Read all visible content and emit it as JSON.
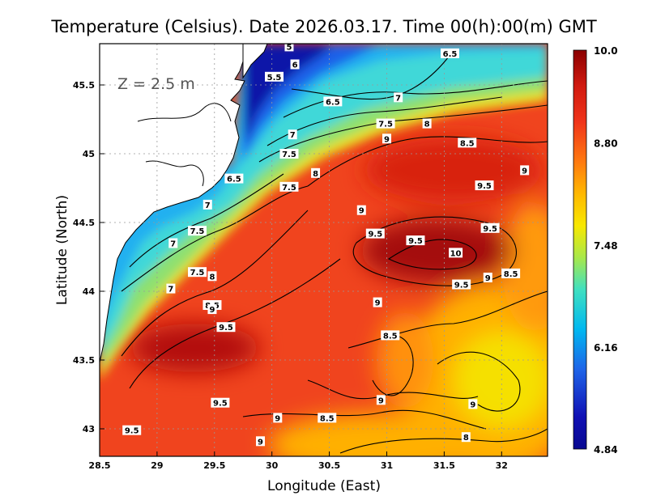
{
  "title": "Temperature (Celsius). Date 2026.03.17. Time 00(h):00(m) GMT",
  "depth_label": "Z = 2.5 m",
  "axes": {
    "xlabel": "Longitude (East)",
    "ylabel": "Latitude (North)",
    "xlim": [
      28.5,
      32.4
    ],
    "ylim": [
      42.8,
      45.8
    ],
    "xticks": [
      "28.5",
      "29",
      "29.5",
      "30",
      "30.5",
      "31",
      "31.5",
      "32"
    ],
    "yticks": [
      "43",
      "43.5",
      "44",
      "44.5",
      "45",
      "45.5"
    ],
    "grid": true
  },
  "colorbar": {
    "min": 4.84,
    "max": 10.0,
    "ticks": [
      "10.0",
      "8.80",
      "7.48",
      "6.16",
      "4.84"
    ],
    "colors": [
      "#8b0000",
      "#d11a10",
      "#f0341a",
      "#ff7a10",
      "#ffb800",
      "#f8e800",
      "#a8e84a",
      "#40e0c0",
      "#00b8f0",
      "#1e64e8",
      "#1010b4",
      "#080890"
    ]
  },
  "chart_data": {
    "type": "heatmap",
    "title": "Temperature (Celsius). Date 2026.03.17. Time 00(h):00(m) GMT",
    "xlabel": "Longitude (East)",
    "ylabel": "Latitude (North)",
    "variable_unit": "Celsius",
    "depth": "Z = 2.5 m",
    "x_range": [
      28.5,
      32.4
    ],
    "y_range": [
      42.8,
      45.8
    ],
    "value_range": [
      4.84,
      10.0
    ],
    "contour_labels": [
      {
        "value": "5",
        "lon": 30.15,
        "lat": 45.78
      },
      {
        "value": "5.5",
        "lon": 30.02,
        "lat": 45.56
      },
      {
        "value": "6",
        "lon": 30.2,
        "lat": 45.65
      },
      {
        "value": "6.5",
        "lon": 30.53,
        "lat": 45.38
      },
      {
        "value": "6.5",
        "lon": 31.55,
        "lat": 45.73
      },
      {
        "value": "7",
        "lon": 30.18,
        "lat": 45.14
      },
      {
        "value": "7",
        "lon": 31.1,
        "lat": 45.41
      },
      {
        "value": "7.5",
        "lon": 30.15,
        "lat": 45.0
      },
      {
        "value": "7.5",
        "lon": 30.99,
        "lat": 45.22
      },
      {
        "value": "8",
        "lon": 31.35,
        "lat": 45.22
      },
      {
        "value": "9",
        "lon": 31.0,
        "lat": 45.11
      },
      {
        "value": "8.5",
        "lon": 31.7,
        "lat": 45.08
      },
      {
        "value": "6.5",
        "lon": 29.67,
        "lat": 44.82
      },
      {
        "value": "8",
        "lon": 30.38,
        "lat": 44.86
      },
      {
        "value": "7.5",
        "lon": 30.15,
        "lat": 44.76
      },
      {
        "value": "9",
        "lon": 32.2,
        "lat": 44.88
      },
      {
        "value": "9.5",
        "lon": 31.85,
        "lat": 44.77
      },
      {
        "value": "7",
        "lon": 29.44,
        "lat": 44.63
      },
      {
        "value": "7.5",
        "lon": 29.35,
        "lat": 44.44
      },
      {
        "value": "9",
        "lon": 30.78,
        "lat": 44.59
      },
      {
        "value": "9.5",
        "lon": 30.9,
        "lat": 44.42
      },
      {
        "value": "9.5",
        "lon": 31.25,
        "lat": 44.37
      },
      {
        "value": "9.5",
        "lon": 31.9,
        "lat": 44.46
      },
      {
        "value": "10",
        "lon": 31.6,
        "lat": 44.28
      },
      {
        "value": "7",
        "lon": 29.14,
        "lat": 44.35
      },
      {
        "value": "7.5",
        "lon": 29.35,
        "lat": 44.14
      },
      {
        "value": "8",
        "lon": 29.48,
        "lat": 44.11
      },
      {
        "value": "8.5",
        "lon": 32.08,
        "lat": 44.13
      },
      {
        "value": "9",
        "lon": 31.88,
        "lat": 44.1
      },
      {
        "value": "9.5",
        "lon": 31.65,
        "lat": 44.05
      },
      {
        "value": "7",
        "lon": 29.12,
        "lat": 44.02
      },
      {
        "value": "8.5",
        "lon": 29.48,
        "lat": 43.9
      },
      {
        "value": "9",
        "lon": 29.48,
        "lat": 43.87
      },
      {
        "value": "9",
        "lon": 30.92,
        "lat": 43.92
      },
      {
        "value": "9.5",
        "lon": 29.6,
        "lat": 43.74
      },
      {
        "value": "8.5",
        "lon": 31.03,
        "lat": 43.68
      },
      {
        "value": "9",
        "lon": 30.95,
        "lat": 43.21
      },
      {
        "value": "9.5",
        "lon": 29.55,
        "lat": 43.19
      },
      {
        "value": "9",
        "lon": 31.75,
        "lat": 43.18
      },
      {
        "value": "9",
        "lon": 30.05,
        "lat": 43.08
      },
      {
        "value": "8.5",
        "lon": 30.48,
        "lat": 43.08
      },
      {
        "value": "9.5",
        "lon": 28.78,
        "lat": 42.99
      },
      {
        "value": "9",
        "lon": 29.9,
        "lat": 42.91
      },
      {
        "value": "8",
        "lon": 31.69,
        "lat": 42.94
      }
    ]
  }
}
